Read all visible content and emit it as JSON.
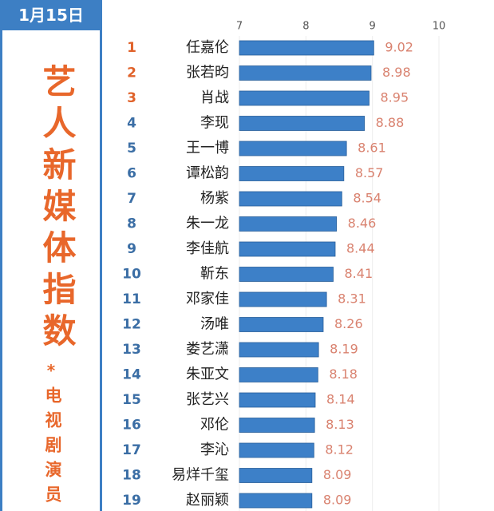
{
  "date": "1月15日",
  "chart_data": {
    "type": "bar",
    "orientation": "horizontal",
    "title": "艺人新媒体指数",
    "title_mark": "*",
    "subtitle": "电视剧演员",
    "ranks": [
      "1",
      "2",
      "3",
      "4",
      "5",
      "6",
      "7",
      "8",
      "9",
      "10",
      "11",
      "12",
      "13",
      "14",
      "15",
      "16",
      "17",
      "18",
      "19"
    ],
    "categories": [
      "任嘉伦",
      "张若昀",
      "肖战",
      "李现",
      "王一博",
      "谭松韵",
      "杨紫",
      "朱一龙",
      "李佳航",
      "靳东",
      "邓家佳",
      "汤唯",
      "娄艺潇",
      "朱亚文",
      "张艺兴",
      "邓伦",
      "李沁",
      "易烊千玺",
      "赵丽颖"
    ],
    "values": [
      9.02,
      8.98,
      8.95,
      8.88,
      8.61,
      8.57,
      8.54,
      8.46,
      8.44,
      8.41,
      8.31,
      8.26,
      8.19,
      8.18,
      8.14,
      8.13,
      8.12,
      8.09,
      8.09
    ],
    "color": "#3d80c8",
    "xlim": [
      7,
      10
    ],
    "xticks": [
      7,
      8,
      9,
      10
    ],
    "grid": true
  }
}
